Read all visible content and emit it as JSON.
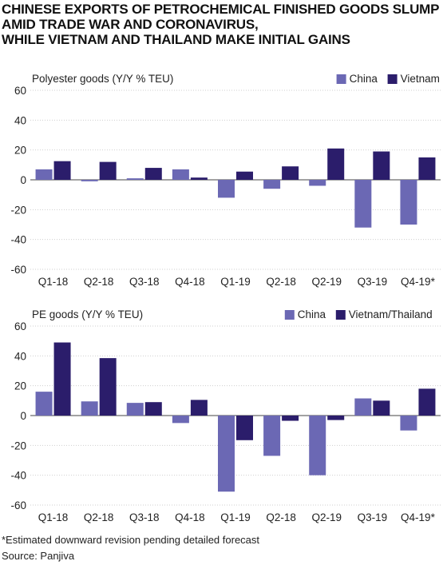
{
  "title_lines": [
    "CHINESE EXPORTS OF PETROCHEMICAL FINISHED GOODS SLUMP",
    "AMID TRADE WAR AND CORONAVIRUS,",
    "WHILE VIETNAM AND THAILAND MAKE INITIAL GAINS"
  ],
  "colors": {
    "series_a": "#6b68b4",
    "series_b": "#2b1d6b",
    "grid": "#cfcfcf",
    "zero": "#444444"
  },
  "chart_data": [
    {
      "type": "bar",
      "title": "Polyester goods (Y/Y % TEU)",
      "categories": [
        "Q1-18",
        "Q2-18",
        "Q3-18",
        "Q4-18",
        "Q1-19",
        "Q2-18",
        "Q2-19",
        "Q3-19",
        "Q4-19*"
      ],
      "series": [
        {
          "name": "China",
          "values": [
            7,
            -1,
            1,
            7,
            -12,
            -6,
            -4,
            -32,
            -30
          ]
        },
        {
          "name": "Vietnam",
          "values": [
            12.5,
            12,
            8,
            1.5,
            5.5,
            9,
            21,
            19,
            15
          ]
        }
      ],
      "ylim": [
        -60,
        60
      ],
      "yticks": [
        60,
        40,
        20,
        0,
        -20,
        -40,
        -60
      ],
      "legend": "top-right",
      "grid": true
    },
    {
      "type": "bar",
      "title": "PE goods (Y/Y % TEU)",
      "categories": [
        "Q1-18",
        "Q2-18",
        "Q3-18",
        "Q4-18",
        "Q1-19",
        "Q2-18",
        "Q2-19",
        "Q3-19",
        "Q4-19*"
      ],
      "series": [
        {
          "name": "China",
          "values": [
            16,
            9.5,
            8.5,
            -5,
            -51,
            -27,
            -40,
            11.5,
            -10
          ]
        },
        {
          "name": "Vietnam/Thailand",
          "values": [
            49,
            38.5,
            9,
            10.5,
            -16.5,
            -3.5,
            -3,
            10,
            18
          ]
        }
      ],
      "ylim": [
        -60,
        60
      ],
      "yticks": [
        60,
        40,
        20,
        0,
        -20,
        -40,
        -60
      ],
      "legend": "top-right",
      "grid": true
    }
  ],
  "footnotes": {
    "note": "*Estimated downward revision pending detailed forecast",
    "source": "Source: Panjiva"
  }
}
